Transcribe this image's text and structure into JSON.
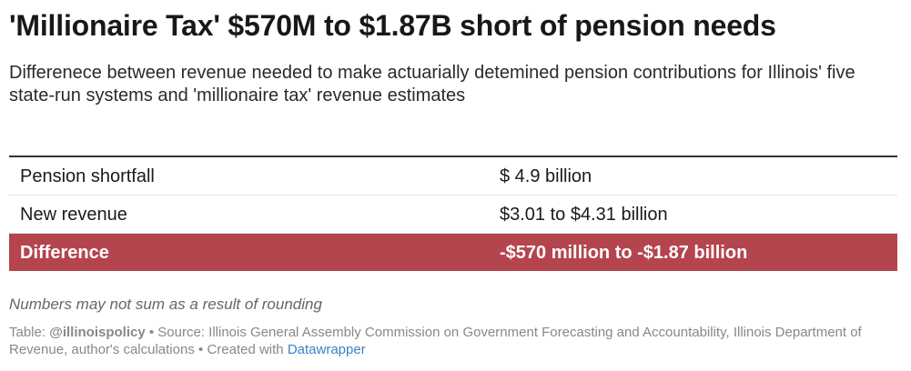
{
  "title": "'Millionaire Tax' $570M to $1.87B short of pension needs",
  "subtitle": "Differenece between revenue needed to make actuarially detemined pension contributions for Illinois' five state-run systems and 'millionaire tax' revenue estimates",
  "colors": {
    "highlight_row": "#b4444e",
    "link": "#3b82c4"
  },
  "chart_data": {
    "type": "table",
    "rows": [
      {
        "label": "Pension shortfall",
        "value": "$ 4.9 billion",
        "highlighted": false
      },
      {
        "label": "New revenue",
        "value": "$3.01 to $4.31 billion",
        "highlighted": false
      },
      {
        "label": "Difference",
        "value": "-$570 million to -$1.87 billion",
        "highlighted": true
      }
    ]
  },
  "note": "Numbers may not sum as a result of rounding",
  "footer": {
    "table_label": "Table:",
    "table_author": "@illinoispolicy",
    "separator": "•",
    "source_label": "Source:",
    "source_text": "Illinois General Assembly Commission on Government Forecasting and Accountability, Illinois Department of Revenue, author's calculations",
    "created_with": "Created with",
    "tool": "Datawrapper"
  }
}
